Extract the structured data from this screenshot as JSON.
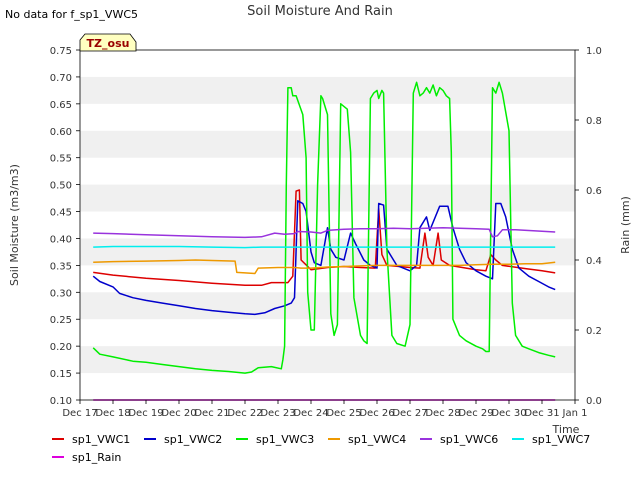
{
  "notice": "No data for f_sp1_VWC5",
  "badge": "TZ_osu",
  "colors": {
    "sp1_VWC1": "#dd0000",
    "sp1_VWC2": "#0000cc",
    "sp1_VWC3": "#00ee00",
    "sp1_VWC4": "#ee9900",
    "sp1_VWC6": "#9933dd",
    "sp1_VWC7": "#00eeee",
    "sp1_Rain": "#dd00dd",
    "band": "#f0f0f0",
    "badge_bg": "#ffffc0",
    "badge_text": "#990000"
  },
  "chart_data": {
    "type": "line",
    "title": "Soil Moisture And Rain",
    "xlabel": "Time",
    "ylabel": "Soil Moisture (m3/m3)",
    "y2label": "Rain (mm)",
    "xlim": [
      17,
      32
    ],
    "ylim": [
      0.1,
      0.75
    ],
    "y2lim": [
      0.0,
      1.0
    ],
    "x_ticks": [
      17,
      18,
      19,
      20,
      21,
      22,
      23,
      24,
      25,
      26,
      27,
      28,
      29,
      30,
      31,
      32
    ],
    "x_tick_labels": [
      "Dec 17",
      "Dec 18",
      "Dec 19",
      "Dec 20",
      "Dec 21",
      "Dec 22",
      "Dec 23",
      "Dec 24",
      "Dec 25",
      "Dec 26",
      "Dec 27",
      "Dec 28",
      "Dec 29",
      "Dec 30",
      "Dec 31",
      "Jan 1"
    ],
    "y_ticks": [
      "0.10",
      "0.15",
      "0.20",
      "0.25",
      "0.30",
      "0.35",
      "0.40",
      "0.45",
      "0.50",
      "0.55",
      "0.60",
      "0.65",
      "0.70",
      "0.75"
    ],
    "y2_ticks": [
      "0.0",
      "0.2",
      "0.4",
      "0.6",
      "0.8",
      "1.0"
    ],
    "grid": "horizontal bands",
    "legend_position": "bottom",
    "series": [
      {
        "name": "sp1_VWC1",
        "axis": "left",
        "points": [
          [
            17.4,
            0.337
          ],
          [
            18,
            0.332
          ],
          [
            19,
            0.326
          ],
          [
            20,
            0.322
          ],
          [
            21,
            0.317
          ],
          [
            22,
            0.313
          ],
          [
            22.5,
            0.313
          ],
          [
            22.8,
            0.318
          ],
          [
            23.3,
            0.318
          ],
          [
            23.45,
            0.33
          ],
          [
            23.55,
            0.488
          ],
          [
            23.65,
            0.49
          ],
          [
            23.7,
            0.36
          ],
          [
            24,
            0.342
          ],
          [
            24.5,
            0.346
          ],
          [
            25,
            0.348
          ],
          [
            25.5,
            0.346
          ],
          [
            25.95,
            0.345
          ],
          [
            26.05,
            0.455
          ],
          [
            26.15,
            0.37
          ],
          [
            26.3,
            0.35
          ],
          [
            27,
            0.346
          ],
          [
            27.3,
            0.345
          ],
          [
            27.45,
            0.41
          ],
          [
            27.55,
            0.365
          ],
          [
            27.7,
            0.35
          ],
          [
            27.85,
            0.41
          ],
          [
            27.95,
            0.36
          ],
          [
            28.2,
            0.35
          ],
          [
            29,
            0.342
          ],
          [
            29.3,
            0.34
          ],
          [
            29.45,
            0.37
          ],
          [
            29.6,
            0.36
          ],
          [
            29.8,
            0.35
          ],
          [
            30.5,
            0.344
          ],
          [
            31,
            0.34
          ],
          [
            31.4,
            0.336
          ]
        ]
      },
      {
        "name": "sp1_VWC2",
        "axis": "left",
        "points": [
          [
            17.4,
            0.33
          ],
          [
            17.6,
            0.32
          ],
          [
            18,
            0.31
          ],
          [
            18.2,
            0.298
          ],
          [
            18.6,
            0.29
          ],
          [
            19,
            0.285
          ],
          [
            19.5,
            0.28
          ],
          [
            20,
            0.275
          ],
          [
            20.5,
            0.27
          ],
          [
            21,
            0.266
          ],
          [
            21.5,
            0.263
          ],
          [
            22,
            0.26
          ],
          [
            22.3,
            0.259
          ],
          [
            22.6,
            0.262
          ],
          [
            22.9,
            0.27
          ],
          [
            23.2,
            0.275
          ],
          [
            23.4,
            0.28
          ],
          [
            23.5,
            0.29
          ],
          [
            23.6,
            0.47
          ],
          [
            23.75,
            0.465
          ],
          [
            23.85,
            0.45
          ],
          [
            24,
            0.375
          ],
          [
            24.1,
            0.355
          ],
          [
            24.3,
            0.35
          ],
          [
            24.5,
            0.42
          ],
          [
            24.6,
            0.38
          ],
          [
            24.75,
            0.365
          ],
          [
            25,
            0.36
          ],
          [
            25.2,
            0.41
          ],
          [
            25.35,
            0.39
          ],
          [
            25.6,
            0.36
          ],
          [
            25.8,
            0.35
          ],
          [
            26,
            0.345
          ],
          [
            26.05,
            0.465
          ],
          [
            26.2,
            0.462
          ],
          [
            26.3,
            0.38
          ],
          [
            26.6,
            0.35
          ],
          [
            27,
            0.34
          ],
          [
            27.2,
            0.35
          ],
          [
            27.3,
            0.42
          ],
          [
            27.5,
            0.44
          ],
          [
            27.6,
            0.415
          ],
          [
            27.9,
            0.46
          ],
          [
            28.15,
            0.46
          ],
          [
            28.3,
            0.42
          ],
          [
            28.5,
            0.38
          ],
          [
            28.7,
            0.355
          ],
          [
            29,
            0.34
          ],
          [
            29.3,
            0.33
          ],
          [
            29.5,
            0.325
          ],
          [
            29.6,
            0.465
          ],
          [
            29.75,
            0.465
          ],
          [
            29.9,
            0.44
          ],
          [
            30.1,
            0.38
          ],
          [
            30.3,
            0.345
          ],
          [
            30.6,
            0.33
          ],
          [
            30.9,
            0.32
          ],
          [
            31.2,
            0.31
          ],
          [
            31.4,
            0.305
          ]
        ]
      },
      {
        "name": "sp1_VWC3",
        "axis": "left",
        "points": [
          [
            17.4,
            0.197
          ],
          [
            17.6,
            0.185
          ],
          [
            18,
            0.18
          ],
          [
            18.6,
            0.172
          ],
          [
            19,
            0.17
          ],
          [
            19.5,
            0.166
          ],
          [
            20,
            0.162
          ],
          [
            20.5,
            0.158
          ],
          [
            21,
            0.155
          ],
          [
            21.5,
            0.153
          ],
          [
            22,
            0.15
          ],
          [
            22.2,
            0.152
          ],
          [
            22.4,
            0.16
          ],
          [
            22.8,
            0.162
          ],
          [
            23.1,
            0.158
          ],
          [
            23.15,
            0.175
          ],
          [
            23.2,
            0.2
          ],
          [
            23.25,
            0.5
          ],
          [
            23.3,
            0.68
          ],
          [
            23.4,
            0.68
          ],
          [
            23.45,
            0.665
          ],
          [
            23.55,
            0.665
          ],
          [
            23.75,
            0.63
          ],
          [
            23.85,
            0.55
          ],
          [
            23.9,
            0.3
          ],
          [
            24.0,
            0.23
          ],
          [
            24.1,
            0.23
          ],
          [
            24.2,
            0.5
          ],
          [
            24.3,
            0.665
          ],
          [
            24.35,
            0.66
          ],
          [
            24.5,
            0.63
          ],
          [
            24.6,
            0.26
          ],
          [
            24.7,
            0.22
          ],
          [
            24.8,
            0.24
          ],
          [
            24.9,
            0.65
          ],
          [
            25.1,
            0.64
          ],
          [
            25.2,
            0.56
          ],
          [
            25.3,
            0.29
          ],
          [
            25.5,
            0.22
          ],
          [
            25.6,
            0.21
          ],
          [
            25.7,
            0.205
          ],
          [
            25.8,
            0.66
          ],
          [
            25.9,
            0.67
          ],
          [
            26.0,
            0.675
          ],
          [
            26.05,
            0.66
          ],
          [
            26.15,
            0.675
          ],
          [
            26.2,
            0.67
          ],
          [
            26.3,
            0.38
          ],
          [
            26.45,
            0.22
          ],
          [
            26.6,
            0.205
          ],
          [
            26.85,
            0.2
          ],
          [
            27.0,
            0.24
          ],
          [
            27.1,
            0.67
          ],
          [
            27.2,
            0.69
          ],
          [
            27.3,
            0.665
          ],
          [
            27.4,
            0.67
          ],
          [
            27.5,
            0.68
          ],
          [
            27.6,
            0.67
          ],
          [
            27.7,
            0.685
          ],
          [
            27.8,
            0.665
          ],
          [
            27.9,
            0.68
          ],
          [
            28.0,
            0.675
          ],
          [
            28.1,
            0.665
          ],
          [
            28.2,
            0.66
          ],
          [
            28.25,
            0.56
          ],
          [
            28.3,
            0.25
          ],
          [
            28.5,
            0.22
          ],
          [
            28.7,
            0.21
          ],
          [
            29.0,
            0.2
          ],
          [
            29.2,
            0.195
          ],
          [
            29.3,
            0.19
          ],
          [
            29.4,
            0.19
          ],
          [
            29.5,
            0.68
          ],
          [
            29.6,
            0.67
          ],
          [
            29.7,
            0.69
          ],
          [
            29.8,
            0.67
          ],
          [
            30.0,
            0.6
          ],
          [
            30.1,
            0.28
          ],
          [
            30.2,
            0.22
          ],
          [
            30.4,
            0.2
          ],
          [
            30.6,
            0.195
          ],
          [
            30.9,
            0.188
          ],
          [
            31.2,
            0.183
          ],
          [
            31.4,
            0.18
          ]
        ]
      },
      {
        "name": "sp1_VWC4",
        "axis": "left",
        "points": [
          [
            17.4,
            0.356
          ],
          [
            18,
            0.357
          ],
          [
            19,
            0.358
          ],
          [
            20,
            0.359
          ],
          [
            20.5,
            0.36
          ],
          [
            21.0,
            0.359
          ],
          [
            21.7,
            0.358
          ],
          [
            21.75,
            0.337
          ],
          [
            22.0,
            0.336
          ],
          [
            22.3,
            0.335
          ],
          [
            22.4,
            0.345
          ],
          [
            23.0,
            0.346
          ],
          [
            23.5,
            0.346
          ],
          [
            23.7,
            0.345
          ],
          [
            24.0,
            0.345
          ],
          [
            24.5,
            0.347
          ],
          [
            25,
            0.348
          ],
          [
            25.5,
            0.349
          ],
          [
            26,
            0.35
          ],
          [
            26.5,
            0.35
          ],
          [
            27,
            0.35
          ],
          [
            27.5,
            0.35
          ],
          [
            28,
            0.35
          ],
          [
            28.5,
            0.35
          ],
          [
            29,
            0.351
          ],
          [
            29.5,
            0.352
          ],
          [
            30,
            0.352
          ],
          [
            30.5,
            0.353
          ],
          [
            31,
            0.353
          ],
          [
            31.4,
            0.356
          ]
        ]
      },
      {
        "name": "sp1_VWC6",
        "axis": "left",
        "points": [
          [
            17.4,
            0.41
          ],
          [
            18,
            0.409
          ],
          [
            19,
            0.407
          ],
          [
            20,
            0.405
          ],
          [
            21,
            0.403
          ],
          [
            22,
            0.402
          ],
          [
            22.5,
            0.403
          ],
          [
            22.9,
            0.41
          ],
          [
            23.2,
            0.408
          ],
          [
            23.5,
            0.409
          ],
          [
            23.6,
            0.413
          ],
          [
            24,
            0.412
          ],
          [
            24.3,
            0.41
          ],
          [
            24.5,
            0.415
          ],
          [
            25,
            0.417
          ],
          [
            25.5,
            0.418
          ],
          [
            26,
            0.418
          ],
          [
            26.5,
            0.419
          ],
          [
            27,
            0.418
          ],
          [
            27.5,
            0.419
          ],
          [
            28,
            0.42
          ],
          [
            28.5,
            0.419
          ],
          [
            29,
            0.418
          ],
          [
            29.4,
            0.417
          ],
          [
            29.5,
            0.403
          ],
          [
            29.65,
            0.405
          ],
          [
            29.8,
            0.416
          ],
          [
            30.2,
            0.416
          ],
          [
            30.8,
            0.414
          ],
          [
            31.4,
            0.412
          ]
        ]
      },
      {
        "name": "sp1_VWC7",
        "axis": "left",
        "points": [
          [
            17.4,
            0.384
          ],
          [
            18,
            0.385
          ],
          [
            19,
            0.385
          ],
          [
            20,
            0.385
          ],
          [
            21,
            0.384
          ],
          [
            22,
            0.383
          ],
          [
            22.5,
            0.384
          ],
          [
            23,
            0.384
          ],
          [
            24,
            0.384
          ],
          [
            25,
            0.384
          ],
          [
            26,
            0.384
          ],
          [
            27,
            0.384
          ],
          [
            28,
            0.384
          ],
          [
            29,
            0.384
          ],
          [
            30,
            0.384
          ],
          [
            31,
            0.384
          ],
          [
            31.4,
            0.384
          ]
        ]
      },
      {
        "name": "sp1_Rain",
        "axis": "right",
        "points": [
          [
            17.4,
            0.0
          ],
          [
            31.4,
            0.0
          ]
        ]
      }
    ]
  }
}
